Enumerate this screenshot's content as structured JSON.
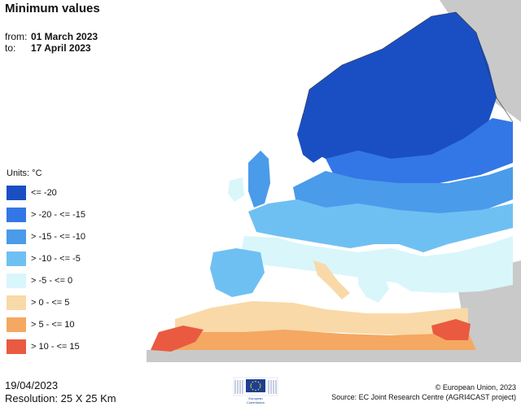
{
  "title": "Minimum values",
  "period": {
    "from_label": "from:",
    "from_value": "01 March 2023",
    "to_label": "to:",
    "to_value": "17 April 2023"
  },
  "legend": {
    "units": "Units: °C",
    "classes": [
      {
        "label": "<= -20",
        "color": "#1a4fc4"
      },
      {
        "label": "> -20 - <= -15",
        "color": "#3377e6"
      },
      {
        "label": "> -15 - <= -10",
        "color": "#4a9bea"
      },
      {
        "label": "> -10 - <= -5",
        "color": "#6fc0f2"
      },
      {
        "label": "> -5 - <= 0",
        "color": "#d9f6fb"
      },
      {
        "label": "> 0 - <= 5",
        "color": "#f9d9a8"
      },
      {
        "label": "> 5 - <= 10",
        "color": "#f4a862"
      },
      {
        "label": "> 10 - <= 15",
        "color": "#ea5a40"
      }
    ]
  },
  "footer": {
    "date": "19/04/2023",
    "resolution": "Resolution: 25 X 25 Km",
    "copyright": "© European Union, 2023",
    "source": "Source: EC Joint Research Centre (AGRI4CAST project)"
  },
  "logo": {
    "line1": "European",
    "line2": "Commission"
  }
}
